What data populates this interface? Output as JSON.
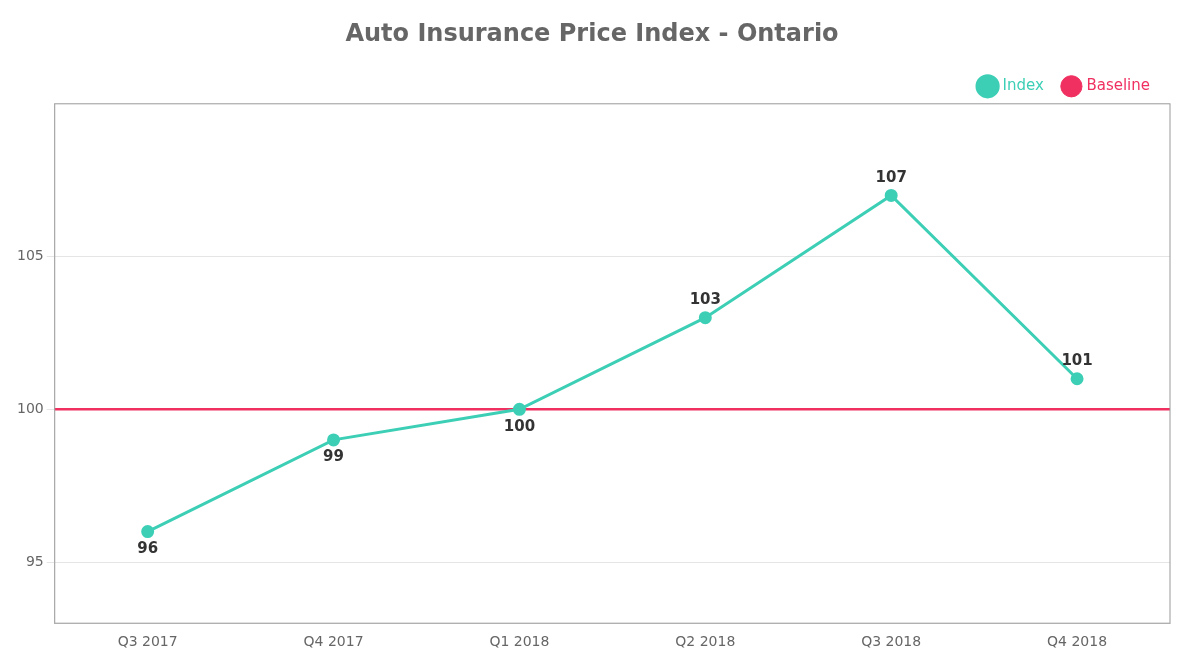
{
  "chart_data": {
    "type": "line",
    "title": "Auto Insurance Price Index - Ontario",
    "categories": [
      "Q3 2017",
      "Q4 2017",
      "Q1 2018",
      "Q2 2018",
      "Q3 2018",
      "Q4 2018"
    ],
    "series": [
      {
        "name": "Index",
        "color": "#3dcfb6",
        "values": [
          96,
          99,
          100,
          103,
          107,
          101
        ]
      }
    ],
    "baseline": {
      "name": "Baseline",
      "color": "#f03060",
      "value": 100
    },
    "ylim": [
      93,
      110
    ],
    "yticks": [
      95,
      100,
      105
    ],
    "grid": true,
    "legend": "top",
    "data_labels": true
  }
}
